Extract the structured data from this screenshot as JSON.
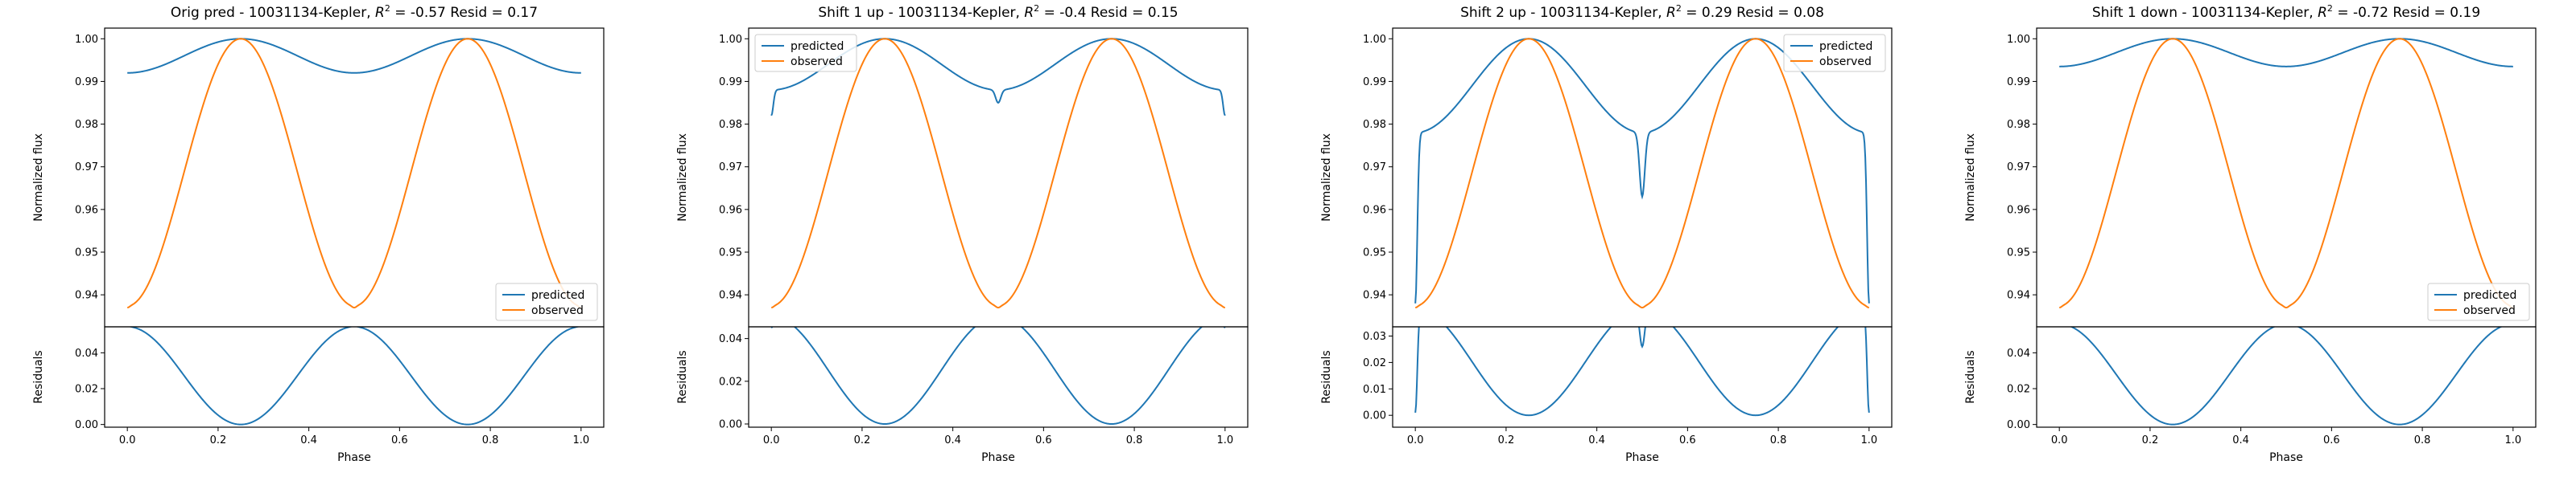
{
  "figure": {
    "background": "#ffffff"
  },
  "colors": {
    "predicted": "#1f77b4",
    "observed": "#ff7f0e",
    "axis": "#000000",
    "legend_border": "#cccccc"
  },
  "chart_data": [
    {
      "type": "line",
      "title_prefix": "Orig pred - 10031134-Kepler, ",
      "r2_label": "R",
      "r2_sup": "2",
      "title_suffix": " = -0.57 Resid = 0.17",
      "xlabel": "Phase",
      "ylabel": "Normalized flux",
      "resid_ylabel": "Residuals",
      "xlim": [
        -0.05,
        1.05
      ],
      "xticks": [
        "0.0",
        "0.2",
        "0.4",
        "0.6",
        "0.8",
        "1.0"
      ],
      "xtick_values": [
        0,
        0.2,
        0.4,
        0.6,
        0.8,
        1.0
      ],
      "ylim": [
        0.9325,
        1.0025
      ],
      "yticks": [
        "0.94",
        "0.95",
        "0.96",
        "0.97",
        "0.98",
        "0.99",
        "1.00"
      ],
      "ytick_values": [
        0.94,
        0.95,
        0.96,
        0.97,
        0.98,
        0.99,
        1.0
      ],
      "resid_ylim": [
        -0.0015,
        0.0545
      ],
      "resid_yticks": [
        "0.00",
        "0.02",
        "0.04"
      ],
      "resid_ytick_values": [
        0,
        0.02,
        0.04
      ],
      "legend_position": "lower-right",
      "series": [
        {
          "name": "predicted",
          "color": "#1f77b4",
          "model": "predicted",
          "a": 0.992,
          "b": 0.008,
          "dip": 0
        },
        {
          "name": "observed",
          "color": "#ff7f0e",
          "model": "observed"
        }
      ],
      "residuals": {
        "color": "#1f77b4"
      }
    },
    {
      "type": "line",
      "title_prefix": "Shift 1 up - 10031134-Kepler, ",
      "r2_label": "R",
      "r2_sup": "2",
      "title_suffix": " = -0.4 Resid = 0.15",
      "xlabel": "Phase",
      "ylabel": "Normalized flux",
      "resid_ylabel": "Residuals",
      "xlim": [
        -0.05,
        1.05
      ],
      "xticks": [
        "0.0",
        "0.2",
        "0.4",
        "0.6",
        "0.8",
        "1.0"
      ],
      "xtick_values": [
        0,
        0.2,
        0.4,
        0.6,
        0.8,
        1.0
      ],
      "ylim": [
        0.9325,
        1.0025
      ],
      "yticks": [
        "0.94",
        "0.95",
        "0.96",
        "0.97",
        "0.98",
        "0.99",
        "1.00"
      ],
      "ytick_values": [
        0.94,
        0.95,
        0.96,
        0.97,
        0.98,
        0.99,
        1.0
      ],
      "resid_ylim": [
        -0.0015,
        0.0455
      ],
      "resid_yticks": [
        "0.00",
        "0.02",
        "0.04"
      ],
      "resid_ytick_values": [
        0,
        0.02,
        0.04
      ],
      "legend_position": "upper-left",
      "series": [
        {
          "name": "predicted",
          "color": "#1f77b4",
          "model": "predicted",
          "a": 0.988,
          "b": 0.012,
          "dip": 0.003,
          "edge": 0.006
        },
        {
          "name": "observed",
          "color": "#ff7f0e",
          "model": "observed"
        }
      ],
      "residuals": {
        "color": "#1f77b4"
      }
    },
    {
      "type": "line",
      "title_prefix": "Shift 2 up - 10031134-Kepler, ",
      "r2_label": "R",
      "r2_sup": "2",
      "title_suffix": " = 0.29 Resid = 0.08",
      "xlabel": "Phase",
      "ylabel": "Normalized flux",
      "resid_ylabel": "Residuals",
      "xlim": [
        -0.05,
        1.05
      ],
      "xticks": [
        "0.0",
        "0.2",
        "0.4",
        "0.6",
        "0.8",
        "1.0"
      ],
      "xtick_values": [
        0,
        0.2,
        0.4,
        0.6,
        0.8,
        1.0
      ],
      "ylim": [
        0.9325,
        1.0025
      ],
      "yticks": [
        "0.94",
        "0.95",
        "0.96",
        "0.97",
        "0.98",
        "0.99",
        "1.00"
      ],
      "ytick_values": [
        0.94,
        0.95,
        0.96,
        0.97,
        0.98,
        0.99,
        1.0
      ],
      "resid_ylim": [
        -0.0045,
        0.0335
      ],
      "resid_yticks": [
        "0.00",
        "0.01",
        "0.02",
        "0.03"
      ],
      "resid_ytick_values": [
        0,
        0.01,
        0.02,
        0.03
      ],
      "legend_position": "upper-right",
      "series": [
        {
          "name": "predicted",
          "color": "#1f77b4",
          "model": "predicted",
          "a": 0.978,
          "b": 0.022,
          "dip": 0.015,
          "edge": 0.04
        },
        {
          "name": "observed",
          "color": "#ff7f0e",
          "model": "observed"
        }
      ],
      "residuals": {
        "color": "#1f77b4"
      }
    },
    {
      "type": "line",
      "title_prefix": "Shift 1 down - 10031134-Kepler, ",
      "r2_label": "R",
      "r2_sup": "2",
      "title_suffix": " = -0.72 Resid = 0.19",
      "xlabel": "Phase",
      "ylabel": "Normalized flux",
      "resid_ylabel": "Residuals",
      "xlim": [
        -0.05,
        1.05
      ],
      "xticks": [
        "0.0",
        "0.2",
        "0.4",
        "0.6",
        "0.8",
        "1.0"
      ],
      "xtick_values": [
        0,
        0.2,
        0.4,
        0.6,
        0.8,
        1.0
      ],
      "ylim": [
        0.9325,
        1.0025
      ],
      "yticks": [
        "0.94",
        "0.95",
        "0.96",
        "0.97",
        "0.98",
        "0.99",
        "1.00"
      ],
      "ytick_values": [
        0.94,
        0.95,
        0.96,
        0.97,
        0.98,
        0.99,
        1.0
      ],
      "resid_ylim": [
        -0.0015,
        0.0545
      ],
      "resid_yticks": [
        "0.00",
        "0.02",
        "0.04"
      ],
      "resid_ytick_values": [
        0,
        0.02,
        0.04
      ],
      "legend_position": "lower-right",
      "series": [
        {
          "name": "predicted",
          "color": "#1f77b4",
          "model": "predicted",
          "a": 0.9935,
          "b": 0.0065,
          "dip": 0
        },
        {
          "name": "observed",
          "color": "#ff7f0e",
          "model": "observed"
        }
      ],
      "residuals": {
        "color": "#1f77b4"
      }
    }
  ]
}
